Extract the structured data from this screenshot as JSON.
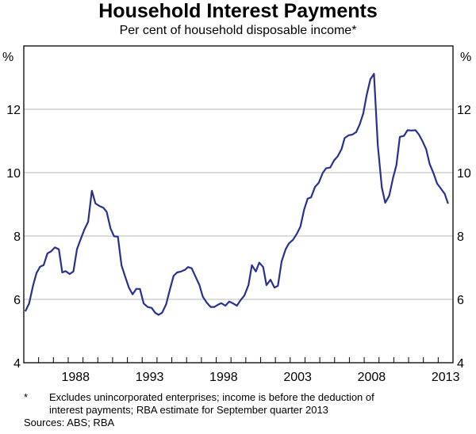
{
  "chart_data": {
    "type": "line",
    "title": "Household Interest Payments",
    "subtitle": "Per cent of household disposable income*",
    "ylabel_left": "%",
    "ylabel_right": "%",
    "xlim": [
      1985,
      2014
    ],
    "ylim": [
      4,
      14
    ],
    "yticks": [
      4,
      6,
      8,
      10,
      12
    ],
    "xtick_labels": [
      "1988",
      "1993",
      "1998",
      "2003",
      "2008",
      "2013"
    ],
    "grid": true,
    "line_color": "#28318f",
    "series": [
      {
        "name": "Household interest payments",
        "x": [
          1985.1,
          1985.36,
          1985.63,
          1985.86,
          1986.1,
          1986.34,
          1986.6,
          1986.83,
          1987.1,
          1987.37,
          1987.6,
          1987.83,
          1988.1,
          1988.35,
          1988.59,
          1988.85,
          1989.09,
          1989.35,
          1989.6,
          1989.84,
          1990.1,
          1990.38,
          1990.6,
          1990.86,
          1991.1,
          1991.36,
          1991.6,
          1991.86,
          1992.1,
          1992.35,
          1992.6,
          1992.85,
          1993.1,
          1993.37,
          1993.64,
          1993.87,
          1994.1,
          1994.35,
          1994.62,
          1994.85,
          1995.12,
          1995.36,
          1995.63,
          1995.88,
          1996.1,
          1996.35,
          1996.6,
          1996.87,
          1997.1,
          1997.37,
          1997.63,
          1997.87,
          1998.12,
          1998.35,
          1998.62,
          1998.88,
          1999.15,
          1999.4,
          1999.64,
          1999.9,
          2000.18,
          2000.41,
          2000.68,
          2000.91,
          2001.17,
          2001.4,
          2001.67,
          2001.94,
          2002.17,
          2002.42,
          2002.69,
          2002.92,
          2003.19,
          2003.46,
          2003.69,
          2003.94,
          2004.18,
          2004.41,
          2004.68,
          2004.93,
          2005.2,
          2005.43,
          2005.7,
          2005.97,
          2006.2,
          2006.47,
          2006.68,
          2006.95,
          2007.19,
          2007.46,
          2007.7,
          2007.94,
          2008.17,
          2008.42,
          2008.66,
          2008.92,
          2009.19,
          2009.42,
          2009.69,
          2009.95,
          2010.18,
          2010.41,
          2010.68,
          2010.93,
          2011.2,
          2011.47,
          2011.7,
          2011.94,
          2012.19,
          2012.42,
          2012.69,
          2012.92,
          2013.19,
          2013.44,
          2013.67
        ],
        "values": [
          5.62,
          5.87,
          6.45,
          6.83,
          7.03,
          7.08,
          7.45,
          7.51,
          7.64,
          7.58,
          6.85,
          6.89,
          6.8,
          6.88,
          7.58,
          7.91,
          8.2,
          8.45,
          9.43,
          9.03,
          8.95,
          8.89,
          8.76,
          8.24,
          7.99,
          7.98,
          7.08,
          6.7,
          6.37,
          6.16,
          6.33,
          6.33,
          5.87,
          5.76,
          5.73,
          5.58,
          5.51,
          5.58,
          5.85,
          6.28,
          6.74,
          6.85,
          6.88,
          6.93,
          7.02,
          6.98,
          6.72,
          6.45,
          6.08,
          5.89,
          5.76,
          5.76,
          5.83,
          5.88,
          5.8,
          5.93,
          5.87,
          5.8,
          5.97,
          6.12,
          6.45,
          7.08,
          6.88,
          7.16,
          7.02,
          6.45,
          6.62,
          6.37,
          6.43,
          7.2,
          7.58,
          7.77,
          7.88,
          8.08,
          8.3,
          8.83,
          9.18,
          9.22,
          9.55,
          9.68,
          9.99,
          10.14,
          10.16,
          10.39,
          10.51,
          10.74,
          11.09,
          11.18,
          11.2,
          11.28,
          11.53,
          11.87,
          12.45,
          12.95,
          13.12,
          10.87,
          9.53,
          9.05,
          9.27,
          9.83,
          10.24,
          11.13,
          11.16,
          11.34,
          11.33,
          11.34,
          11.2,
          10.99,
          10.74,
          10.28,
          9.97,
          9.66,
          9.49,
          9.33,
          9.02
        ]
      }
    ]
  },
  "notes": {
    "footnote_marker": "*",
    "footnote_line1": "Excludes unincorporated enterprises; income is before the deduction of",
    "footnote_line2": "interest payments; RBA estimate for September quarter 2013",
    "sources": "Sources: ABS; RBA"
  }
}
